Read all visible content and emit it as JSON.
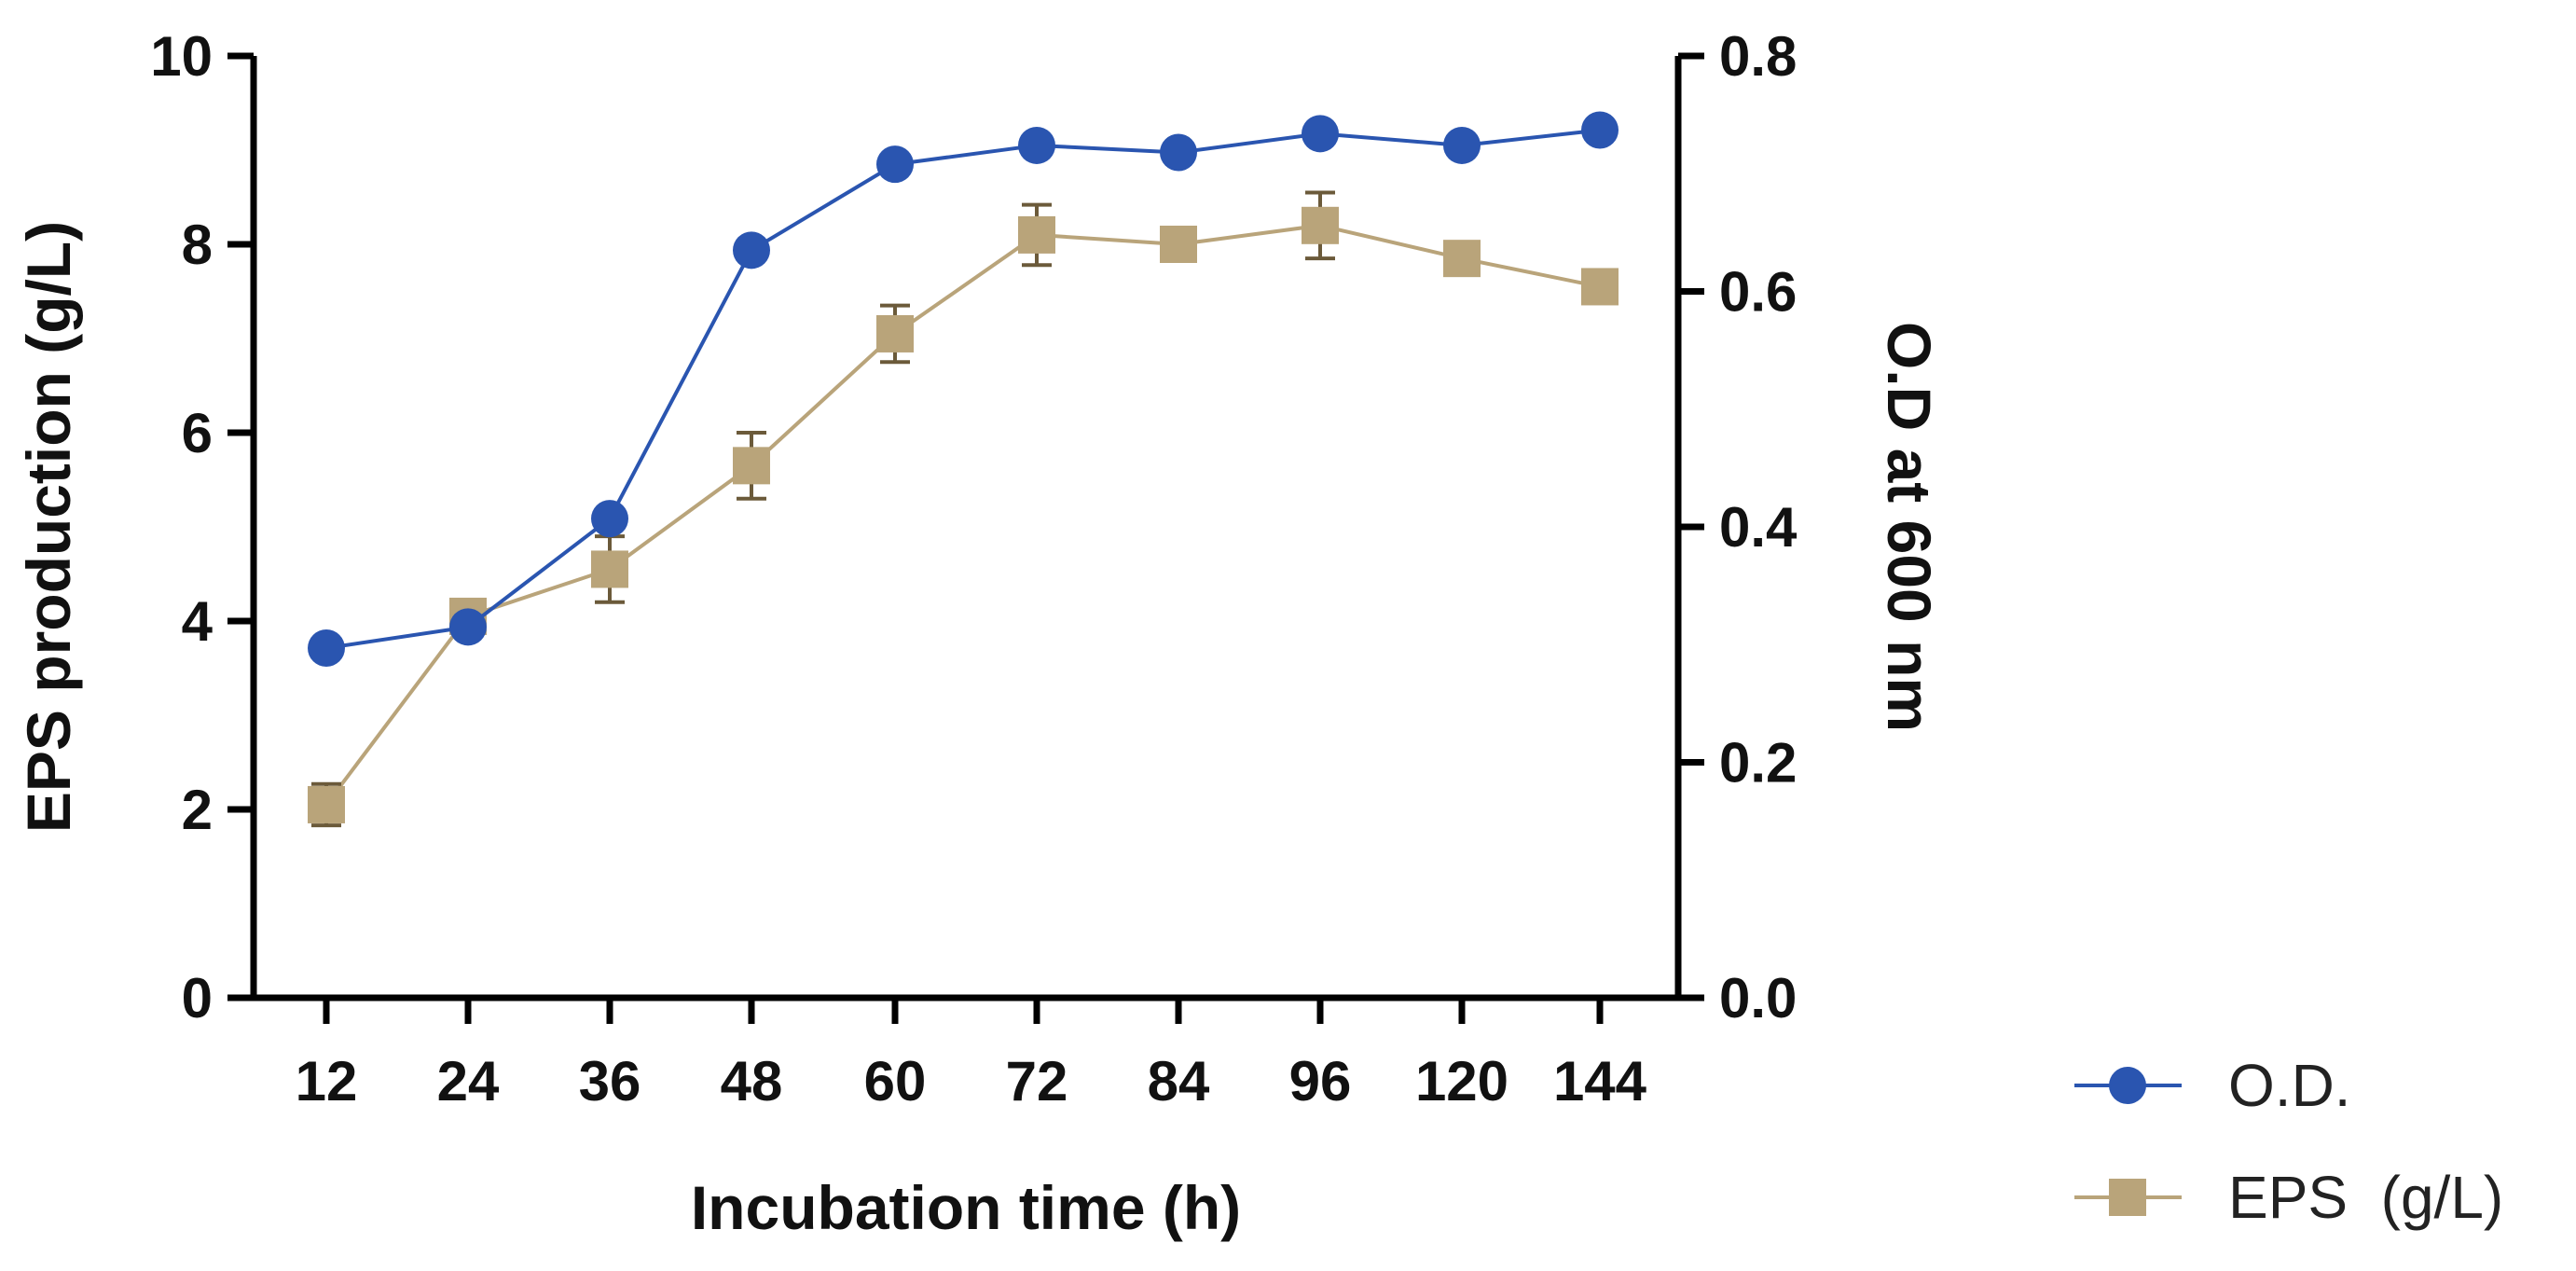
{
  "chart_data": {
    "type": "line",
    "title": "",
    "xlabel": "Incubation time (h)",
    "ylabel": "EPS production (g/L)",
    "y2label": "O.D at 600 nm",
    "categories": [
      "12",
      "24",
      "36",
      "48",
      "60",
      "72",
      "84",
      "96",
      "120",
      "144"
    ],
    "ylim": [
      0,
      10
    ],
    "yticks": [
      "0",
      "2",
      "4",
      "6",
      "8",
      "10"
    ],
    "y2lim": [
      0.0,
      0.8
    ],
    "y2ticks": [
      "0.0",
      "0.2",
      "0.4",
      "0.6",
      "0.8"
    ],
    "legend_position": "bottom-right",
    "series": [
      {
        "name": "O.D.",
        "marker": "circle",
        "color": "#2a55b0",
        "axis": "right",
        "values": [
          0.297,
          0.315,
          0.407,
          0.635,
          0.708,
          0.724,
          0.718,
          0.734,
          0.724,
          0.737
        ]
      },
      {
        "name": "EPS  (g/L)",
        "marker": "square",
        "color": "#b9a47a",
        "error_color": "#6b5a3a",
        "axis": "left",
        "values": [
          2.05,
          4.05,
          4.55,
          5.65,
          7.05,
          8.1,
          8.0,
          8.2,
          7.85,
          7.55
        ],
        "errors": [
          0.22,
          0.12,
          0.35,
          0.35,
          0.3,
          0.32,
          0.1,
          0.35,
          0.1,
          0.1
        ]
      }
    ]
  }
}
